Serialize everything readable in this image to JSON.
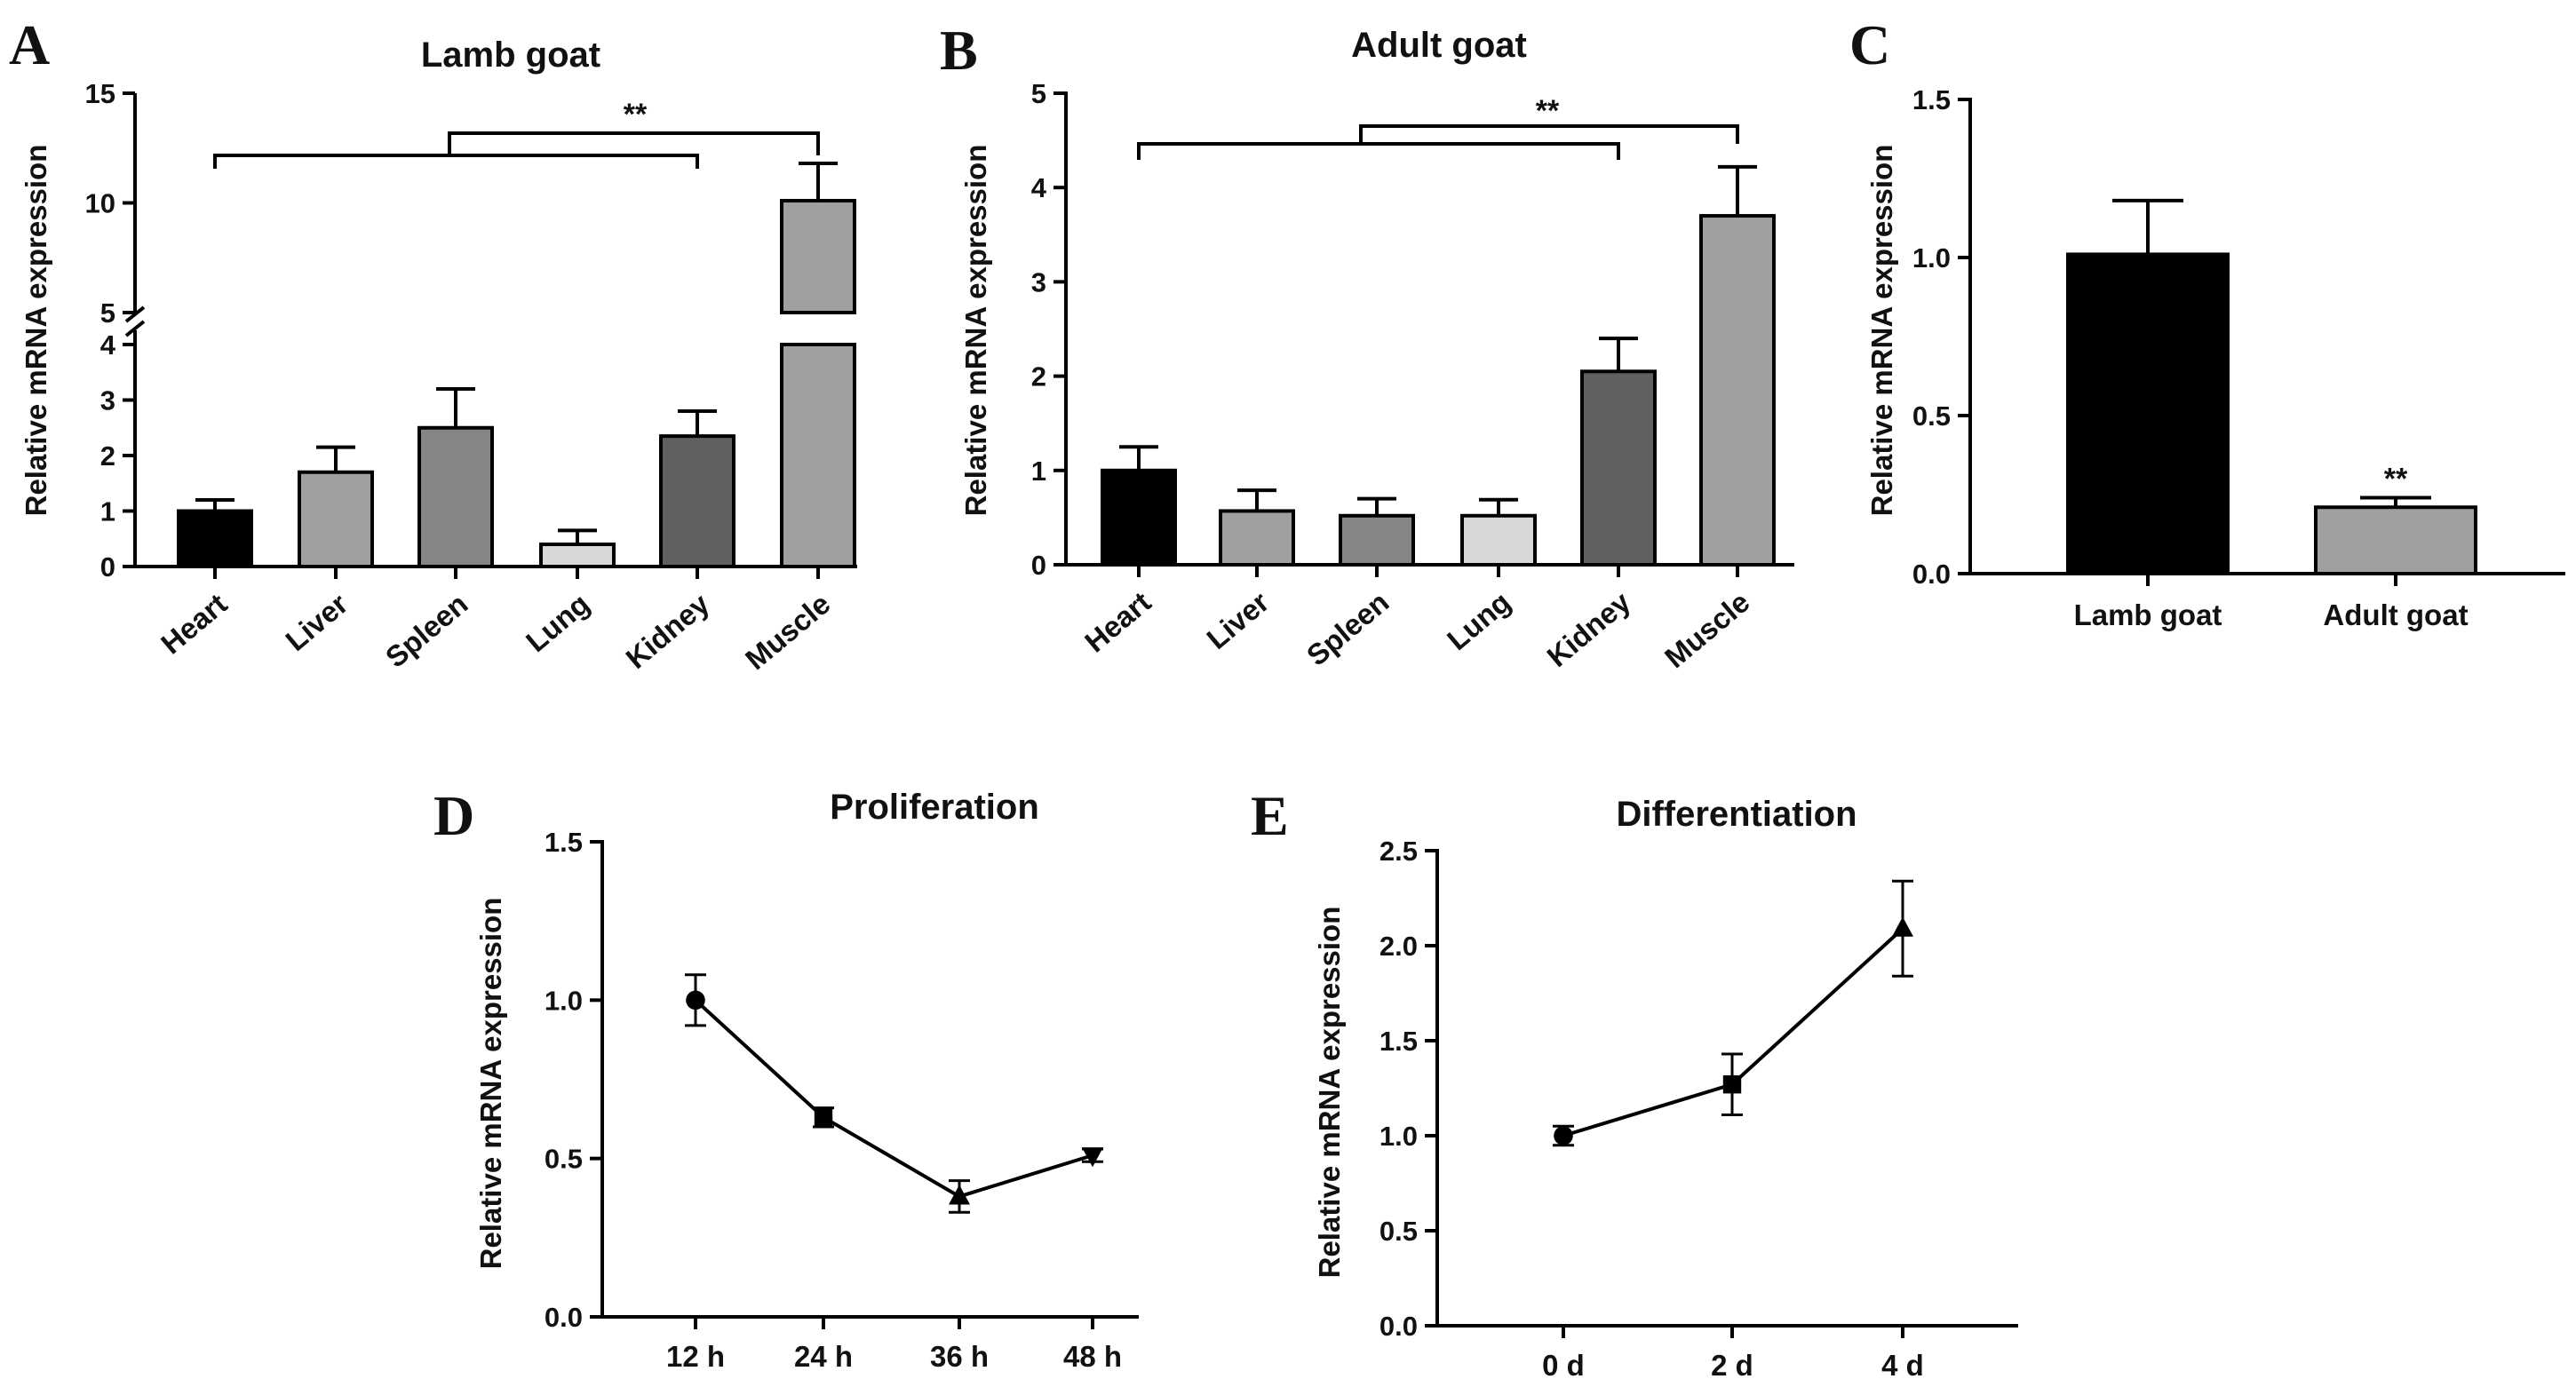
{
  "colors": {
    "black": "#000000",
    "gray_light": "#a0a0a0",
    "gray_mid": "#858585",
    "gray_pale": "#d8d8d8",
    "gray_dark": "#606060"
  },
  "chart_data": [
    {
      "panel": "A",
      "type": "bar",
      "title": "Lamb goat",
      "ylabel": "Relative mRNA expression",
      "categories": [
        "Heart",
        "Liver",
        "Spleen",
        "Lung",
        "Kidney",
        "Muscle"
      ],
      "values": [
        1.0,
        1.7,
        2.5,
        0.4,
        2.35,
        10.1
      ],
      "errors": [
        0.2,
        0.45,
        0.7,
        0.25,
        0.45,
        1.7
      ],
      "bar_colors": [
        "#000000",
        "#a0a0a0",
        "#858585",
        "#d8d8d8",
        "#606060",
        "#a0a0a0"
      ],
      "ylim": [
        0,
        15
      ],
      "axis_break": [
        4,
        5
      ],
      "yticks": [
        "0",
        "1",
        "2",
        "3",
        "4",
        "5",
        "10",
        "15"
      ],
      "significance": "**"
    },
    {
      "panel": "B",
      "type": "bar",
      "title": "Adult goat",
      "ylabel": "Relative mRNA expression",
      "categories": [
        "Heart",
        "Liver",
        "Spleen",
        "Lung",
        "Kidney",
        "Muscle"
      ],
      "values": [
        1.0,
        0.57,
        0.52,
        0.52,
        2.05,
        3.7
      ],
      "errors": [
        0.25,
        0.22,
        0.18,
        0.17,
        0.35,
        0.52
      ],
      "bar_colors": [
        "#000000",
        "#a0a0a0",
        "#858585",
        "#d8d8d8",
        "#606060",
        "#a0a0a0"
      ],
      "ylim": [
        0,
        5
      ],
      "yticks": [
        "0",
        "1",
        "2",
        "3",
        "4",
        "5"
      ],
      "significance": "**"
    },
    {
      "panel": "C",
      "type": "bar",
      "ylabel": "Relative mRNA expression",
      "categories": [
        "Lamb goat",
        "Adult goat"
      ],
      "values": [
        1.01,
        0.21
      ],
      "errors": [
        0.17,
        0.03
      ],
      "bar_colors": [
        "#000000",
        "#a0a0a0"
      ],
      "ylim": [
        0,
        1.5
      ],
      "yticks": [
        "0.0",
        "0.5",
        "1.0",
        "1.5"
      ],
      "significance": "**"
    },
    {
      "panel": "D",
      "type": "line",
      "title": "Proliferation",
      "ylabel": "Relative mRNA expression",
      "x": [
        "12 h",
        "24 h",
        "36 h",
        "48 h"
      ],
      "values": [
        1.0,
        0.63,
        0.38,
        0.51
      ],
      "errors": [
        0.08,
        0.03,
        0.05,
        0.02
      ],
      "markers": [
        "circle",
        "square",
        "triangle-up",
        "triangle-down"
      ],
      "ylim": [
        0,
        1.5
      ],
      "yticks": [
        "0.0",
        "0.5",
        "1.0",
        "1.5"
      ]
    },
    {
      "panel": "E",
      "type": "line",
      "title": "Differentiation",
      "ylabel": "Relative mRNA expression",
      "x": [
        "0 d",
        "2 d",
        "4 d"
      ],
      "values": [
        1.0,
        1.27,
        2.09
      ],
      "errors": [
        0.05,
        0.16,
        0.25
      ],
      "markers": [
        "circle",
        "square",
        "triangle-up"
      ],
      "ylim": [
        0,
        2.5
      ],
      "yticks": [
        "0.0",
        "0.5",
        "1.0",
        "1.5",
        "2.0",
        "2.5"
      ]
    }
  ]
}
